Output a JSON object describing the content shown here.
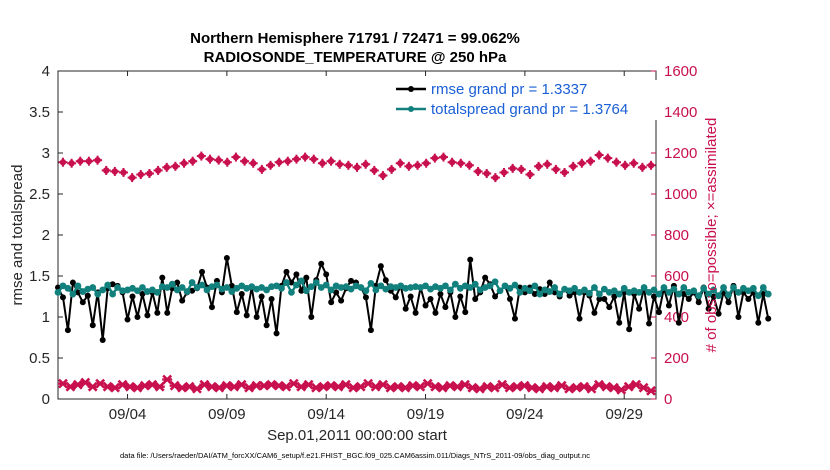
{
  "chart_data": {
    "type": "line",
    "title_line1": "Northern Hemisphere 71791 / 72471 = 99.062%",
    "title_line2": "RADIOSONDE_TEMPERATURE @ 250 hPa",
    "xlabel": "Sep.01,2011 00:00:00 start",
    "ylabel_left": "rmse and totalspread",
    "ylabel_right": "# of obs: o=possible; ×=assimilated",
    "footnote": "data file: /Users/raeder/DAI/ATM_forcXX/CAM6_setup/f.e21.FHIST_BGC.f09_025.CAM6assim.011/Diags_NTrS_2011-09/obs_diag_output.nc",
    "xlim": [
      0.5,
      30.6
    ],
    "ylim_left": [
      0,
      4
    ],
    "ylim_right": [
      0,
      1600
    ],
    "yticks_left": [
      "0",
      "0.5",
      "1",
      "1.5",
      "2",
      "2.5",
      "3",
      "3.5",
      "4"
    ],
    "yticks_right": [
      "0",
      "200",
      "400",
      "600",
      "800",
      "1000",
      "1200",
      "1400",
      "1600"
    ],
    "xticks": [
      {
        "pos": 4,
        "label": "09/04"
      },
      {
        "pos": 9,
        "label": "09/09"
      },
      {
        "pos": 14,
        "label": "09/14"
      },
      {
        "pos": 19,
        "label": "09/19"
      },
      {
        "pos": 24,
        "label": "09/24"
      },
      {
        "pos": 29,
        "label": "09/29"
      }
    ],
    "x_start": 0.5,
    "x_step": 0.25,
    "series": [
      {
        "name": "rmse",
        "legend": "rmse grand pr = 1.3337",
        "color": "#000000",
        "axis": "left",
        "values": [
          1.36,
          1.24,
          0.84,
          1.42,
          1.3,
          1.18,
          1.26,
          0.9,
          1.3,
          0.72,
          1.35,
          1.4,
          1.38,
          1.3,
          0.97,
          1.25,
          1.0,
          1.28,
          1.02,
          1.3,
          1.05,
          1.48,
          1.05,
          1.35,
          1.42,
          1.2,
          1.3,
          1.32,
          1.35,
          1.55,
          1.36,
          1.12,
          1.44,
          1.3,
          1.72,
          1.38,
          1.06,
          1.28,
          1.02,
          1.36,
          1.0,
          1.25,
          0.9,
          1.22,
          0.8,
          1.38,
          1.55,
          1.42,
          1.52,
          1.32,
          1.48,
          1.0,
          1.45,
          1.65,
          1.52,
          1.18,
          1.3,
          1.2,
          1.35,
          1.44,
          1.42,
          1.36,
          1.24,
          0.84,
          1.38,
          1.62,
          1.45,
          1.32,
          1.24,
          1.38,
          1.1,
          1.25,
          1.05,
          1.36,
          1.14,
          1.22,
          1.05,
          1.28,
          1.12,
          1.3,
          1.0,
          1.25,
          1.06,
          1.7,
          1.22,
          1.3,
          1.48,
          1.4,
          1.25,
          1.32,
          1.38,
          1.22,
          0.98,
          1.36,
          1.3,
          1.36,
          1.28,
          1.34,
          1.28,
          1.42,
          1.3,
          1.25,
          1.34,
          1.26,
          1.3,
          0.98,
          1.3,
          1.26,
          1.05,
          1.22,
          1.22,
          1.12,
          1.25,
          0.93,
          1.3,
          0.85,
          1.28,
          1.1,
          1.35,
          0.92,
          1.25,
          1.06,
          1.35,
          1.14,
          1.38,
          0.93,
          1.28,
          1.22,
          1.3,
          1.18,
          1.36,
          1.1,
          1.25,
          1.04,
          1.3,
          1.18,
          1.38,
          1.0,
          1.3,
          1.22,
          1.3,
          0.93,
          1.28,
          0.98
        ]
      },
      {
        "name": "totalspread",
        "legend": "totalspread grand pr = 1.3764",
        "color": "#12807d",
        "axis": "left",
        "values": [
          1.3,
          1.38,
          1.35,
          1.28,
          1.38,
          1.31,
          1.34,
          1.36,
          1.28,
          1.33,
          1.39,
          1.28,
          1.36,
          1.32,
          1.33,
          1.35,
          1.32,
          1.36,
          1.31,
          1.33,
          1.3,
          1.37,
          1.36,
          1.4,
          1.33,
          1.36,
          1.31,
          1.42,
          1.36,
          1.39,
          1.33,
          1.37,
          1.39,
          1.34,
          1.36,
          1.31,
          1.35,
          1.38,
          1.35,
          1.37,
          1.34,
          1.36,
          1.33,
          1.37,
          1.38,
          1.35,
          1.42,
          1.3,
          1.39,
          1.44,
          1.32,
          1.37,
          1.42,
          1.36,
          1.39,
          1.33,
          1.38,
          1.36,
          1.37,
          1.34,
          1.38,
          1.36,
          1.32,
          1.41,
          1.33,
          1.38,
          1.34,
          1.37,
          1.36,
          1.38,
          1.35,
          1.36,
          1.37,
          1.36,
          1.38,
          1.34,
          1.37,
          1.35,
          1.38,
          1.33,
          1.4,
          1.35,
          1.38,
          1.36,
          1.4,
          1.33,
          1.36,
          1.38,
          1.43,
          1.32,
          1.38,
          1.35,
          1.39,
          1.3,
          1.35,
          1.32,
          1.38,
          1.28,
          1.33,
          1.31,
          1.36,
          1.28,
          1.34,
          1.32,
          1.35,
          1.3,
          1.33,
          1.29,
          1.36,
          1.28,
          1.34,
          1.3,
          1.32,
          1.28,
          1.35,
          1.3,
          1.32,
          1.3,
          1.36,
          1.3,
          1.33,
          1.28,
          1.36,
          1.3,
          1.34,
          1.28,
          1.36,
          1.3,
          1.32,
          1.26,
          1.35,
          1.28,
          1.33,
          1.26,
          1.36,
          1.27,
          1.36,
          1.3,
          1.35,
          1.32,
          1.35,
          1.26,
          1.36,
          1.28
        ]
      },
      {
        "name": "nobs_possible",
        "legend": "",
        "color": "#c8104e",
        "axis": "right",
        "marker": "o",
        "values": [
          1155,
          1150,
          1160,
          1160,
          1165,
          1115,
          1110,
          1105,
          1080,
          1095,
          1100,
          1115,
          1130,
          1135,
          1150,
          1160,
          1185,
          1170,
          1165,
          1155,
          1180,
          1160,
          1150,
          1120,
          1140,
          1155,
          1160,
          1170,
          1180,
          1170,
          1150,
          1160,
          1145,
          1140,
          1130,
          1145,
          1115,
          1090,
          1120,
          1150,
          1135,
          1140,
          1150,
          1175,
          1180,
          1155,
          1150,
          1140,
          1110,
          1100,
          1080,
          1105,
          1125,
          1120,
          1095,
          1135,
          1145,
          1120,
          1105,
          1135,
          1150,
          1160,
          1190,
          1175,
          1155,
          1140,
          1150,
          1130,
          1140
        ]
      },
      {
        "name": "nobs_assimilated",
        "legend": "",
        "color": "#c8104e",
        "axis": "right",
        "marker": "x",
        "values": [
          75,
          60,
          70,
          80,
          60,
          75,
          60,
          55,
          70,
          60,
          55,
          65,
          70,
          60,
          95,
          65,
          55,
          60,
          50,
          70,
          60,
          55,
          65,
          60,
          70,
          55,
          65,
          65,
          70,
          65,
          60,
          75,
          60,
          70,
          55,
          60,
          65,
          60,
          70,
          55,
          60,
          75,
          60,
          70,
          55,
          60,
          55,
          65,
          60,
          75,
          60,
          55,
          65,
          60,
          70,
          55,
          50,
          60,
          55,
          70,
          55,
          60,
          65,
          55,
          50,
          60,
          55,
          65,
          50,
          55,
          60,
          50,
          70,
          60,
          55,
          45,
          60,
          70,
          55,
          40
        ]
      }
    ]
  }
}
